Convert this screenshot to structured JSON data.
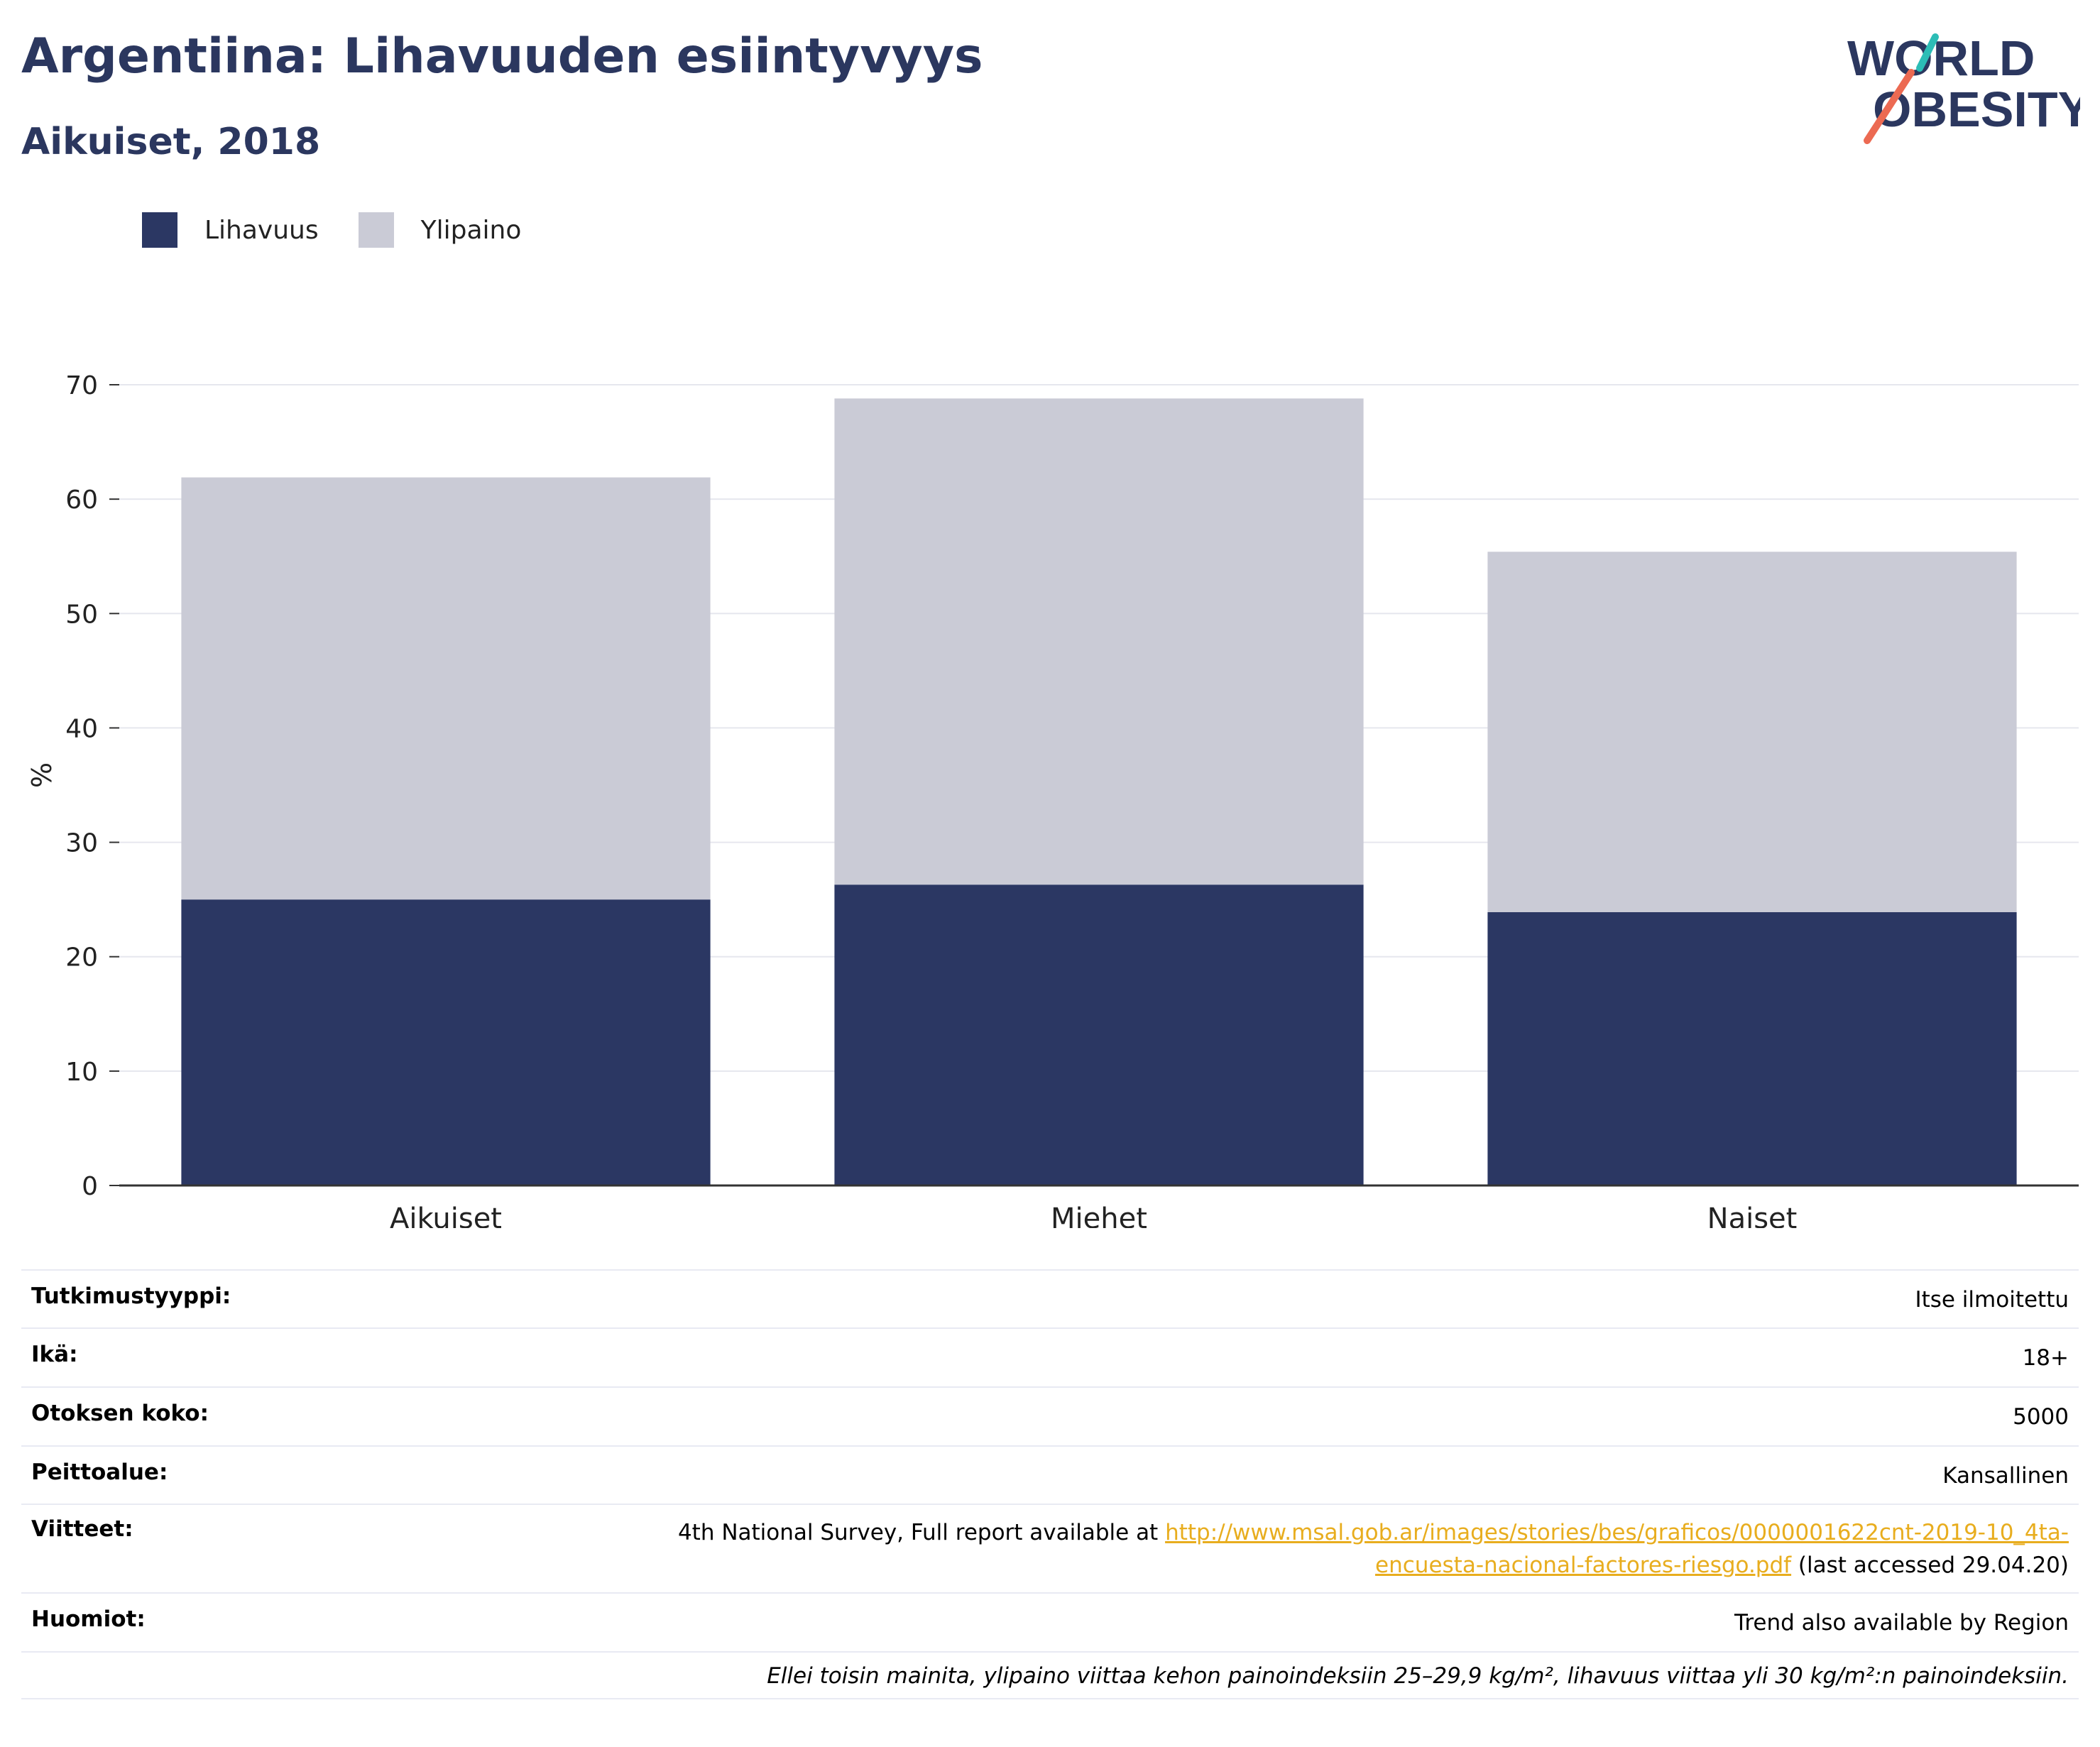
{
  "header": {
    "title": "Argentiina: Lihavuuden esiintyvyys",
    "subtitle": "Aikuiset, 2018"
  },
  "logo": {
    "line1": "WORLD",
    "line2": "OBESITY",
    "text": "WORLD OBESITY"
  },
  "legend": {
    "items": [
      {
        "label": "Lihavuus",
        "color": "#2b3763"
      },
      {
        "label": "Ylipaino",
        "color": "#cacbd6"
      }
    ]
  },
  "chart_data": {
    "type": "bar",
    "stacked": true,
    "categories": [
      "Aikuiset",
      "Miehet",
      "Naiset"
    ],
    "series": [
      {
        "name": "Lihavuus",
        "values": [
          25.0,
          26.3,
          23.9
        ],
        "color": "#2b3763"
      },
      {
        "name": "Ylipaino",
        "values": [
          36.9,
          42.5,
          31.5
        ],
        "color": "#cacbd6"
      }
    ],
    "ylabel": "%",
    "xlabel": "",
    "ylim": [
      0,
      70
    ],
    "yticks": [
      0,
      10,
      20,
      30,
      40,
      50,
      60,
      70
    ],
    "grid": true,
    "legend_position": "top-left"
  },
  "info": {
    "study_type": {
      "label": "Tutkimustyyppi:",
      "value": "Itse ilmoitettu"
    },
    "age": {
      "label": "Ikä:",
      "value": "18+"
    },
    "sample_size": {
      "label": "Otoksen koko:",
      "value": "5000"
    },
    "coverage": {
      "label": "Peittoalue:",
      "value": "Kansallinen"
    },
    "references": {
      "label": "Viitteet:",
      "text_before": "4th National Survey, Full report available at ",
      "link_part1": "http://www.msal.gob.ar/images/stories/bes/graficos/0000001622cnt-2019-10_4ta-",
      "link_part2": "encuesta-nacional-factores-riesgo.pdf",
      "text_after": " (last accessed 29.04.20)"
    },
    "notes": {
      "label": "Huomiot:",
      "value": "Trend also available by Region"
    },
    "footnote": "Ellei toisin mainita, ylipaino viittaa kehon painoindeksiin 25–29,9 kg/m², lihavuus viittaa yli 30 kg/m²:n painoindeksiin."
  }
}
